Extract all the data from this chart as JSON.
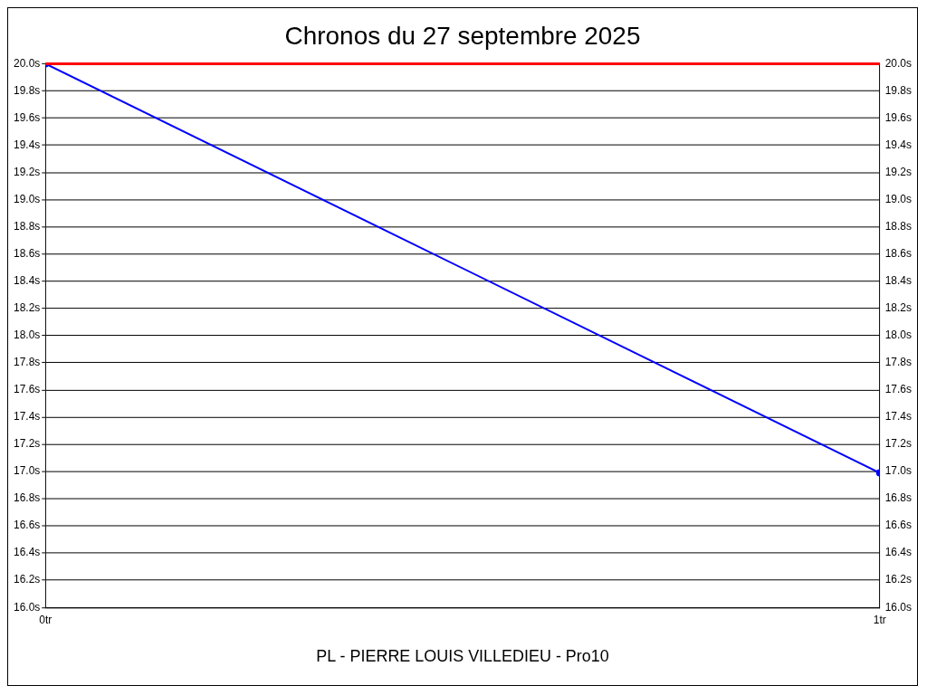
{
  "chart_data": {
    "type": "line",
    "title": "Chronos du 27 septembre 2025",
    "xlabel": "PL - PIERRE LOUIS VILLEDIEU - Pro10",
    "x": [
      0,
      1
    ],
    "series": [
      {
        "color": "#0000ff",
        "values": [
          20.0,
          16.99
        ]
      }
    ],
    "xlim": [
      0,
      1
    ],
    "xticks": [
      {
        "value": 0,
        "label": "0tr"
      },
      {
        "value": 1,
        "label": "1tr"
      }
    ],
    "ylim": [
      16.0,
      20.0
    ],
    "yticks": [
      {
        "value": 16.0,
        "label": "16.0s"
      },
      {
        "value": 16.2,
        "label": "16.2s"
      },
      {
        "value": 16.4,
        "label": "16.4s"
      },
      {
        "value": 16.6,
        "label": "16.6s"
      },
      {
        "value": 16.8,
        "label": "16.8s"
      },
      {
        "value": 17.0,
        "label": "17.0s"
      },
      {
        "value": 17.2,
        "label": "17.2s"
      },
      {
        "value": 17.4,
        "label": "17.4s"
      },
      {
        "value": 17.6,
        "label": "17.6s"
      },
      {
        "value": 17.8,
        "label": "17.8s"
      },
      {
        "value": 18.0,
        "label": "18.0s"
      },
      {
        "value": 18.2,
        "label": "18.2s"
      },
      {
        "value": 18.4,
        "label": "18.4s"
      },
      {
        "value": 18.6,
        "label": "18.6s"
      },
      {
        "value": 18.8,
        "label": "18.8s"
      },
      {
        "value": 19.0,
        "label": "19.0s"
      },
      {
        "value": 19.2,
        "label": "19.2s"
      },
      {
        "value": 19.4,
        "label": "19.4s"
      },
      {
        "value": 19.6,
        "label": "19.6s"
      },
      {
        "value": 19.8,
        "label": "19.8s"
      },
      {
        "value": 20.0,
        "label": "20.0s"
      }
    ],
    "y2lim": [
      16.0,
      20.0
    ],
    "y2ticks": [
      {
        "value": 16.0,
        "label": "16.0s"
      },
      {
        "value": 16.2,
        "label": "16.2s"
      },
      {
        "value": 16.4,
        "label": "16.4s"
      },
      {
        "value": 16.6,
        "label": "16.6s"
      },
      {
        "value": 16.8,
        "label": "16.8s"
      },
      {
        "value": 17.0,
        "label": "17.0s"
      },
      {
        "value": 17.2,
        "label": "17.2s"
      },
      {
        "value": 17.4,
        "label": "17.4s"
      },
      {
        "value": 17.6,
        "label": "17.6s"
      },
      {
        "value": 17.8,
        "label": "17.8s"
      },
      {
        "value": 18.0,
        "label": "18.0s"
      },
      {
        "value": 18.2,
        "label": "18.2s"
      },
      {
        "value": 18.4,
        "label": "18.4s"
      },
      {
        "value": 18.6,
        "label": "18.6s"
      },
      {
        "value": 18.8,
        "label": "18.8s"
      },
      {
        "value": 19.0,
        "label": "19.0s"
      },
      {
        "value": 19.2,
        "label": "19.2s"
      },
      {
        "value": 19.4,
        "label": "19.4s"
      },
      {
        "value": 19.6,
        "label": "19.6s"
      },
      {
        "value": 19.8,
        "label": "19.8s"
      },
      {
        "value": 20.0,
        "label": "20.0s"
      }
    ],
    "ref_lines": [
      {
        "axis": "y",
        "value": 20.0,
        "color": "#ff0000"
      }
    ],
    "grid": "y",
    "marker": "circle",
    "line_style": "solid"
  }
}
